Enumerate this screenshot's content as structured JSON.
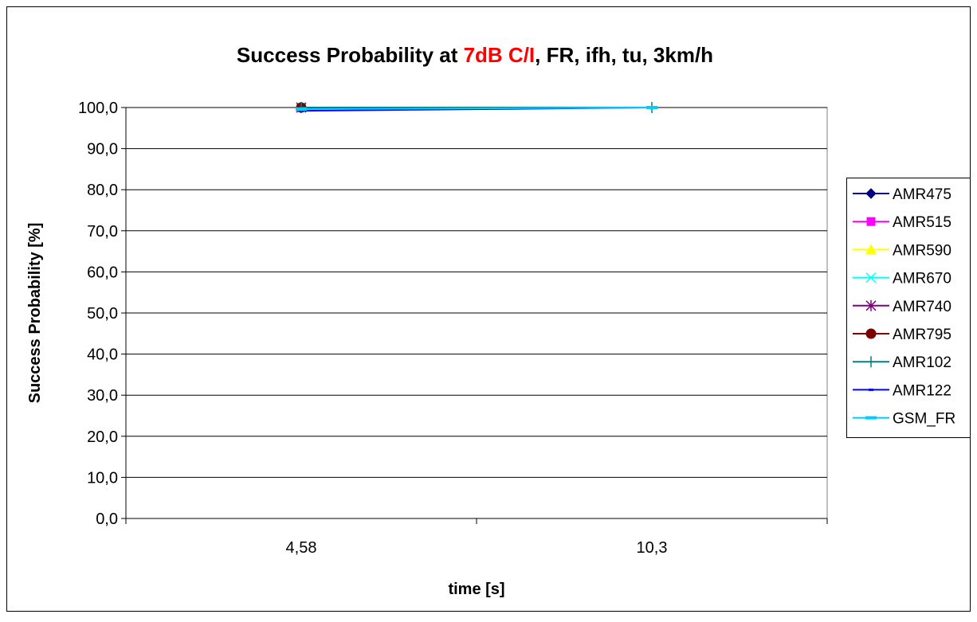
{
  "chart_data": {
    "type": "line",
    "title": {
      "prefix": "Success Probability at ",
      "highlight": "7dB C/I",
      "suffix": ", FR, ifh, tu, 3km/h",
      "highlight_color": "#ff0000"
    },
    "xlabel": "time [s]",
    "ylabel": "Success Probability [%]",
    "categories": [
      "4,58",
      "10,3"
    ],
    "ylim": [
      0,
      100
    ],
    "yticks": [
      "0,0",
      "10,0",
      "20,0",
      "30,0",
      "40,0",
      "50,0",
      "60,0",
      "70,0",
      "80,0",
      "90,0",
      "100,0"
    ],
    "grid": true,
    "legend_position": "right",
    "series": [
      {
        "name": "AMR475",
        "values": [
          100,
          null
        ],
        "color": "#000080",
        "marker": "diamond"
      },
      {
        "name": "AMR515",
        "values": [
          100,
          null
        ],
        "color": "#ff00ff",
        "marker": "square"
      },
      {
        "name": "AMR590",
        "values": [
          100,
          null
        ],
        "color": "#ffff00",
        "marker": "triangle"
      },
      {
        "name": "AMR670",
        "values": [
          100,
          null
        ],
        "color": "#00ffff",
        "marker": "x"
      },
      {
        "name": "AMR740",
        "values": [
          100,
          null
        ],
        "color": "#800080",
        "marker": "star"
      },
      {
        "name": "AMR795",
        "values": [
          100,
          null
        ],
        "color": "#800000",
        "marker": "circle"
      },
      {
        "name": "AMR102",
        "values": [
          100,
          100
        ],
        "color": "#008080",
        "marker": "plus"
      },
      {
        "name": "AMR122",
        "values": [
          99.2,
          100
        ],
        "color": "#0000ff",
        "marker": "dash"
      },
      {
        "name": "GSM_FR",
        "values": [
          99.6,
          100
        ],
        "color": "#00ccff",
        "marker": "bar"
      }
    ]
  }
}
